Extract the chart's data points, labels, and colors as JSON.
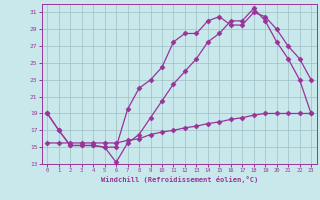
{
  "xlabel": "Windchill (Refroidissement éolien,°C)",
  "xlim": [
    -0.5,
    23.5
  ],
  "ylim": [
    13,
    32
  ],
  "yticks": [
    13,
    15,
    17,
    19,
    21,
    23,
    25,
    27,
    29,
    31
  ],
  "xticks": [
    0,
    1,
    2,
    3,
    4,
    5,
    6,
    7,
    8,
    9,
    10,
    11,
    12,
    13,
    14,
    15,
    16,
    17,
    18,
    19,
    20,
    21,
    22,
    23
  ],
  "bg_color": "#c8e8ec",
  "grid_color": "#9dbfc5",
  "line_color": "#993399",
  "line1_x": [
    0,
    1,
    2,
    3,
    4,
    5,
    6,
    7,
    8,
    9,
    10,
    11,
    12,
    13,
    14,
    15,
    16,
    17,
    18,
    19,
    20,
    21,
    22,
    23
  ],
  "line1_y": [
    19.0,
    17.0,
    15.2,
    15.2,
    15.2,
    15.0,
    13.2,
    15.5,
    16.5,
    18.5,
    20.5,
    22.5,
    24.0,
    25.5,
    27.5,
    28.5,
    30.0,
    30.0,
    31.5,
    30.0,
    27.5,
    25.5,
    23.0,
    19.0
  ],
  "line2_x": [
    0,
    1,
    2,
    3,
    4,
    5,
    6,
    7,
    8,
    9,
    10,
    11,
    12,
    13,
    14,
    15,
    16,
    17,
    18,
    19,
    20,
    21,
    22,
    23
  ],
  "line2_y": [
    19.0,
    17.0,
    15.2,
    15.2,
    15.2,
    15.0,
    15.0,
    19.5,
    22.0,
    23.0,
    24.5,
    27.5,
    28.5,
    28.5,
    30.0,
    30.5,
    29.5,
    29.5,
    31.0,
    30.5,
    29.0,
    27.0,
    25.5,
    23.0
  ],
  "line3_x": [
    0,
    1,
    2,
    3,
    4,
    5,
    6,
    7,
    8,
    9,
    10,
    11,
    12,
    13,
    14,
    15,
    16,
    17,
    18,
    19,
    20,
    21,
    22,
    23
  ],
  "line3_y": [
    15.5,
    15.5,
    15.5,
    15.5,
    15.5,
    15.5,
    15.5,
    15.8,
    16.0,
    16.5,
    16.8,
    17.0,
    17.3,
    17.5,
    17.8,
    18.0,
    18.3,
    18.5,
    18.8,
    19.0,
    19.0,
    19.0,
    19.0,
    19.0
  ],
  "marker": "D",
  "marker_size": 2.5,
  "line_width": 0.9
}
